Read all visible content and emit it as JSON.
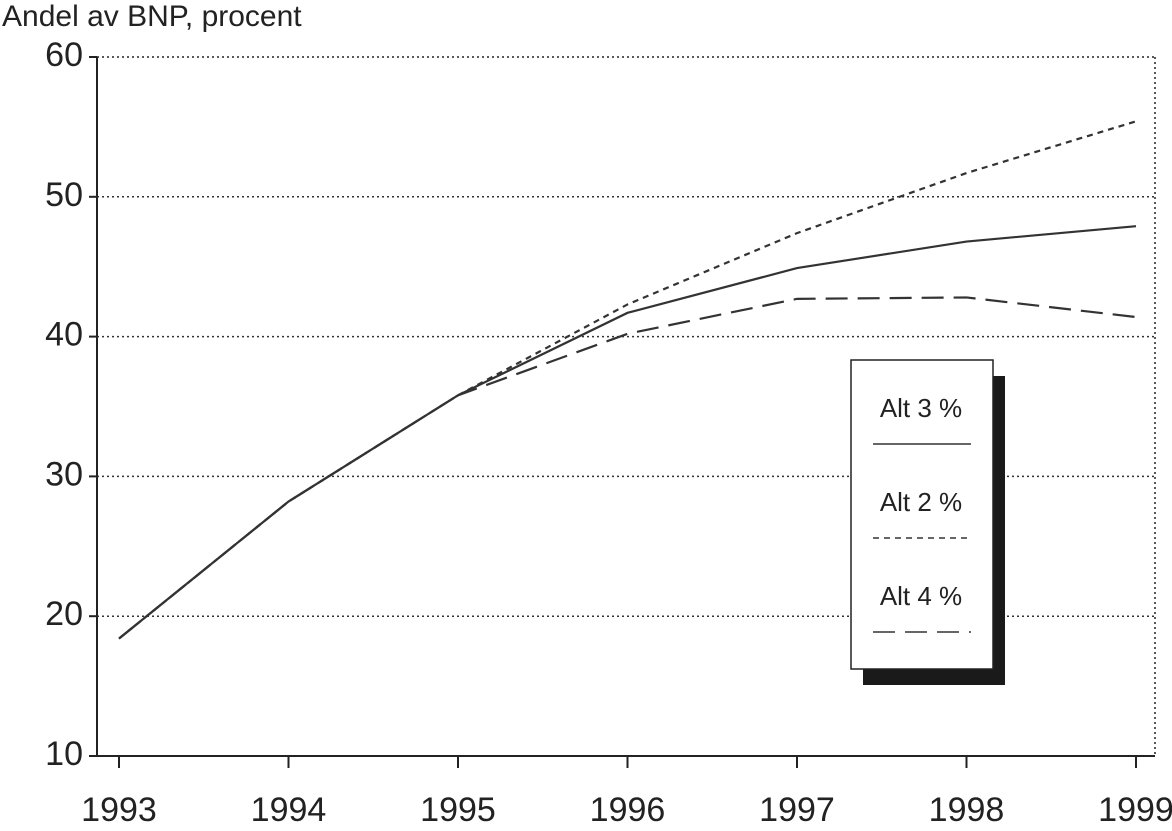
{
  "chart_data": {
    "type": "line",
    "y_label": "Andel av BNP, procent",
    "x": [
      1993,
      1994,
      1995,
      1996,
      1997,
      1998,
      1999
    ],
    "xlim": [
      1993,
      1999
    ],
    "xticks": [
      1993,
      1994,
      1995,
      1996,
      1997,
      1998,
      1999
    ],
    "ylim": [
      10,
      60
    ],
    "yticks": [
      10,
      20,
      30,
      40,
      50,
      60
    ],
    "grid": true,
    "legend": "right",
    "series": [
      {
        "name": "Alt 3 %",
        "color": "#333333",
        "line_style": "solid",
        "values": [
          18.4,
          28.2,
          35.8,
          41.7,
          44.9,
          46.8,
          47.9
        ]
      },
      {
        "name": "Alt 2 %",
        "color": "#333333",
        "line_style": "dotted",
        "values": [
          18.4,
          28.2,
          35.8,
          42.3,
          47.4,
          51.7,
          55.4
        ]
      },
      {
        "name": "Alt 4 %",
        "color": "#333333",
        "line_style": "dashed",
        "values": [
          18.4,
          28.2,
          35.8,
          40.2,
          42.7,
          42.8,
          41.4
        ]
      }
    ]
  }
}
